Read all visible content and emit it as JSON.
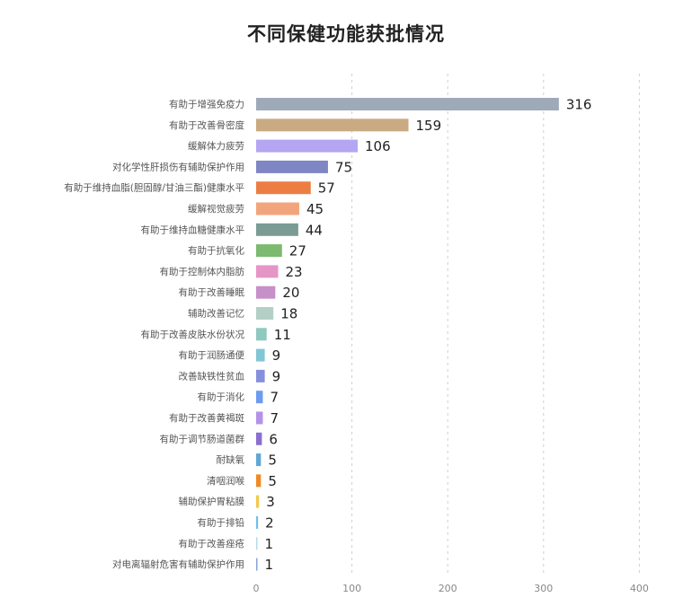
{
  "chart_data": {
    "type": "bar",
    "orientation": "horizontal",
    "title": "不同保健功能获批情况",
    "xlabel": "",
    "ylabel": "",
    "xlim": [
      0,
      400
    ],
    "xticks": [
      0,
      100,
      200,
      300,
      400
    ],
    "grid": true,
    "categories": [
      "有助于增强免疫力",
      "有助于改善骨密度",
      "缓解体力疲劳",
      "对化学性肝损伤有辅助保护作用",
      "有助于维持血脂(胆固醇/甘油三酯)健康水平",
      "缓解视觉疲劳",
      "有助于维持血糖健康水平",
      "有助于抗氧化",
      "有助于控制体内脂肪",
      "有助于改善睡眠",
      "辅助改善记忆",
      "有助于改善皮肤水份状况",
      "有助于润肠通便",
      "改善缺铁性贫血",
      "有助于消化",
      "有助于改善黄褐斑",
      "有助于调节肠道菌群",
      "耐缺氧",
      "清咽润喉",
      "辅助保护胃粘膜",
      "有助于排铅",
      "有助于改善痤疮",
      "对电离辐射危害有辅助保护作用"
    ],
    "values": [
      316,
      159,
      106,
      75,
      57,
      45,
      44,
      27,
      23,
      20,
      18,
      11,
      9,
      9,
      7,
      7,
      6,
      5,
      5,
      3,
      2,
      1,
      1
    ],
    "colors": [
      "#9eaab8",
      "#c9aa82",
      "#b4a6f3",
      "#7f86c4",
      "#ec7e44",
      "#f2a57c",
      "#7a9c94",
      "#7cba6f",
      "#e596c6",
      "#c690c9",
      "#b4cfc6",
      "#8fc9be",
      "#80c6d6",
      "#8790dc",
      "#6e9bf0",
      "#b493e6",
      "#8a6fd0",
      "#5fa8d6",
      "#f08a24",
      "#f2c94c",
      "#6ec0e8",
      "#b7dbe8",
      "#7fa8d8"
    ]
  }
}
